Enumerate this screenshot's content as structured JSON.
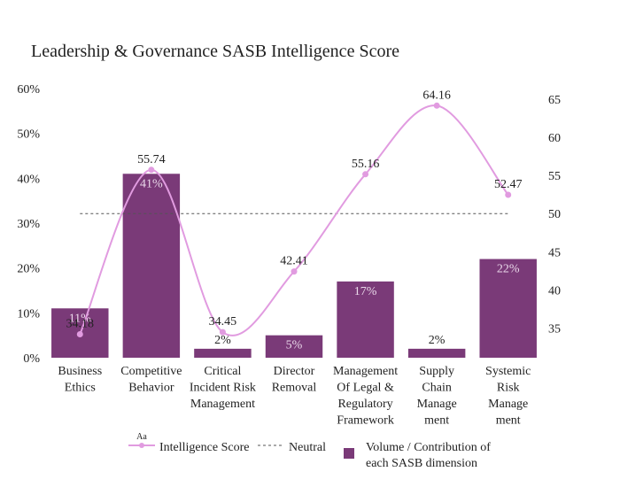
{
  "chart_data": {
    "type": "bar",
    "title": "Leadership & Governance SASB Intelligence Score",
    "categories": [
      [
        "Business",
        "Ethics"
      ],
      [
        "Competitive",
        "Behavior"
      ],
      [
        "Critical",
        "Incident Risk",
        "Management"
      ],
      [
        "Director",
        "Removal"
      ],
      [
        "Management",
        "Of Legal &",
        "Regulatory",
        "Framework"
      ],
      [
        "Supply",
        "Chain",
        "Manage",
        "ment"
      ],
      [
        "Systemic",
        "Risk",
        "Manage",
        "ment"
      ]
    ],
    "bars": {
      "name": "Volume / Contribution of each SASB dimension",
      "values": [
        11,
        41,
        2,
        5,
        17,
        2,
        22
      ],
      "labels": [
        "11%",
        "41%",
        "2%",
        "5%",
        "17%",
        "2%",
        "22%"
      ],
      "color": "#7a3a78"
    },
    "line": {
      "name": "Intelligence Score",
      "values": [
        34.18,
        55.74,
        34.45,
        42.41,
        55.16,
        64.16,
        52.47
      ],
      "labels": [
        "34.18",
        "55.74",
        "34.45",
        "42.41",
        "55.16",
        "64.16",
        "52.47"
      ],
      "color": "#e19be0"
    },
    "neutral": {
      "name": "Neutral",
      "value": 50,
      "color": "#555555"
    },
    "y_left": {
      "range": [
        0,
        60
      ],
      "ticks": [
        "0%",
        "10%",
        "20%",
        "30%",
        "40%",
        "50%",
        "60%"
      ],
      "tick_values": [
        0,
        10,
        20,
        30,
        40,
        50,
        60
      ]
    },
    "y_right": {
      "range": [
        31.1,
        66.4
      ],
      "ticks": [
        "35",
        "40",
        "45",
        "50",
        "55",
        "60",
        "65"
      ],
      "tick_values": [
        35,
        40,
        45,
        50,
        55,
        60,
        65
      ]
    },
    "legend": {
      "placement": "bottom",
      "line_label": "Intelligence Score",
      "neutral_label": "Neutral",
      "bar_label_lines": [
        "Volume / Contribution of",
        "each SASB dimension"
      ],
      "badge": "Aa"
    },
    "grid": false
  }
}
